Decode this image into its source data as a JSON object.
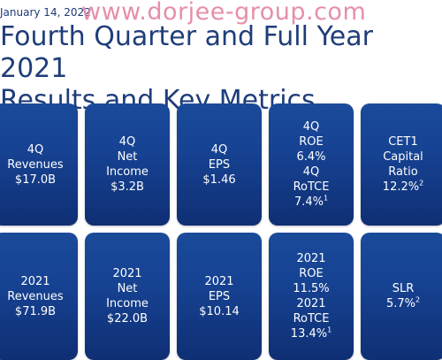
{
  "header": {
    "date": "January 14, 2022",
    "watermark": "www.dorjee-group.com",
    "title_line1": "Fourth Quarter and Full Year 2021",
    "title_line2": "Results and Key Metrics"
  },
  "tiles_row1": [
    {
      "lines": [
        "4Q",
        "Revenues",
        "$17.0B"
      ]
    },
    {
      "lines": [
        "4Q",
        "Net",
        "Income",
        "$3.2B"
      ]
    },
    {
      "lines": [
        "4Q",
        "EPS",
        "$1.46"
      ]
    },
    {
      "lines": [
        "4Q",
        "ROE",
        "6.4%",
        "4Q",
        "RoTCE",
        "7.4%"
      ],
      "footnote": "1"
    },
    {
      "lines": [
        "CET1",
        "Capital",
        "Ratio",
        "12.2%"
      ],
      "footnote": "2"
    }
  ],
  "tiles_row2": [
    {
      "lines": [
        "2021",
        "Revenues",
        "$71.9B"
      ]
    },
    {
      "lines": [
        "2021",
        "Net",
        "Income",
        "$22.0B"
      ]
    },
    {
      "lines": [
        "2021",
        "EPS",
        "$10.14"
      ]
    },
    {
      "lines": [
        "2021",
        "ROE",
        "11.5%",
        "2021",
        "RoTCE",
        "13.4%"
      ],
      "footnote": "1"
    },
    {
      "lines": [
        "SLR",
        "5.7%"
      ],
      "footnote": "2"
    }
  ],
  "colors": {
    "tile_blue": "#164292",
    "title_blue": "#1f3d7a",
    "watermark_pink": "#e58aa4"
  }
}
